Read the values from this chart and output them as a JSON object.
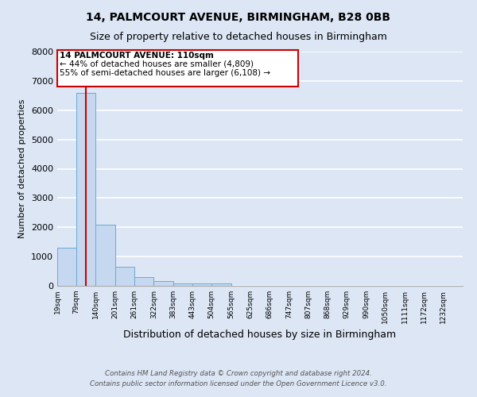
{
  "title": "14, PALMCOURT AVENUE, BIRMINGHAM, B28 0BB",
  "subtitle": "Size of property relative to detached houses in Birmingham",
  "xlabel": "Distribution of detached houses by size in Birmingham",
  "ylabel": "Number of detached properties",
  "bin_labels": [
    "19sqm",
    "79sqm",
    "140sqm",
    "201sqm",
    "261sqm",
    "322sqm",
    "383sqm",
    "443sqm",
    "504sqm",
    "565sqm",
    "625sqm",
    "686sqm",
    "747sqm",
    "807sqm",
    "868sqm",
    "929sqm",
    "990sqm",
    "1050sqm",
    "1111sqm",
    "1172sqm",
    "1232sqm"
  ],
  "bin_edges": [
    19,
    79,
    140,
    201,
    261,
    322,
    383,
    443,
    504,
    565,
    625,
    686,
    747,
    807,
    868,
    929,
    990,
    1050,
    1111,
    1172,
    1232
  ],
  "bin_width": 61,
  "bar_heights": [
    1300,
    6600,
    2080,
    650,
    295,
    150,
    80,
    85,
    80,
    0,
    0,
    0,
    0,
    0,
    0,
    0,
    0,
    0,
    0,
    0
  ],
  "bar_color": "#c5d8f0",
  "bar_edge_color": "#6aaad4",
  "vline_color": "#cc0000",
  "vline_x": 110,
  "ylim": [
    0,
    8000
  ],
  "yticks": [
    0,
    1000,
    2000,
    3000,
    4000,
    5000,
    6000,
    7000,
    8000
  ],
  "annotation_title": "14 PALMCOURT AVENUE: 110sqm",
  "annotation_line1": "← 44% of detached houses are smaller (4,809)",
  "annotation_line2": "55% of semi-detached houses are larger (6,108) →",
  "annotation_box_color": "#cc0000",
  "footnote1": "Contains HM Land Registry data © Crown copyright and database right 2024.",
  "footnote2": "Contains public sector information licensed under the Open Government Licence v3.0.",
  "fig_bg_color": "#dce6f5",
  "plot_bg_color": "#dce6f5",
  "grid_color": "#ffffff",
  "title_fontsize": 10,
  "subtitle_fontsize": 9
}
